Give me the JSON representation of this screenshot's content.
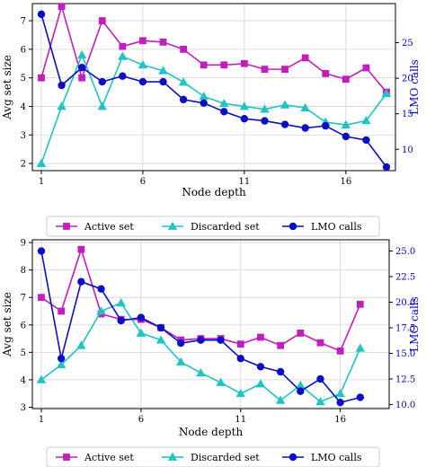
{
  "colors": {
    "active": "#c21ebd",
    "discarded": "#1fc4c4",
    "lmo": "#0b0fc4",
    "grid": "#d3d3d3",
    "right_axis": "#0000cc"
  },
  "legend": {
    "position": "below-plot",
    "active_label": "Active set",
    "discarded_label": "Discarded set",
    "lmo_label": "LMO calls"
  },
  "chart_data": [
    {
      "type": "line",
      "xlabel": "Node depth",
      "ylabel": "Avg set size",
      "y2label": "LMO calls",
      "xlim": [
        1,
        18
      ],
      "xticks": [
        1,
        6,
        11,
        16
      ],
      "ylim": [
        1.75,
        7.6
      ],
      "yticks": [
        2,
        3,
        4,
        5,
        6,
        7
      ],
      "y2lim": [
        7,
        30.5
      ],
      "y2ticks": [
        10,
        15,
        20,
        25
      ],
      "grid": true,
      "series": [
        {
          "name": "Active set",
          "axis": "left",
          "x": [
            1,
            2,
            3,
            4,
            5,
            6,
            7,
            8,
            9,
            10,
            11,
            12,
            13,
            14,
            15,
            16,
            17,
            18
          ],
          "values": [
            5.0,
            7.5,
            5.0,
            7.0,
            6.1,
            6.3,
            6.25,
            6.0,
            5.45,
            5.45,
            5.5,
            5.3,
            5.3,
            5.7,
            5.15,
            4.95,
            5.35,
            4.5
          ]
        },
        {
          "name": "Discarded set",
          "axis": "left",
          "x": [
            1,
            2,
            3,
            4,
            5,
            6,
            7,
            8,
            9,
            10,
            11,
            12,
            13,
            14,
            15,
            16,
            17,
            18
          ],
          "values": [
            2.0,
            4.0,
            5.8,
            4.0,
            5.75,
            5.45,
            5.25,
            4.85,
            4.35,
            4.1,
            4.0,
            3.9,
            4.05,
            3.95,
            3.45,
            3.35,
            3.5,
            4.45
          ]
        },
        {
          "name": "LMO calls",
          "axis": "right",
          "x": [
            1,
            2,
            3,
            4,
            5,
            6,
            7,
            8,
            9,
            10,
            11,
            12,
            13,
            14,
            15,
            16,
            17,
            18
          ],
          "values": [
            29.0,
            19.0,
            21.5,
            19.5,
            20.3,
            19.5,
            19.5,
            17.0,
            16.5,
            15.3,
            14.3,
            14.0,
            13.5,
            13.0,
            13.3,
            11.8,
            11.3,
            7.5
          ]
        }
      ]
    },
    {
      "type": "line",
      "xlabel": "Node depth",
      "ylabel": "Avg set size",
      "y2label": "LMO calls",
      "xlim": [
        1,
        18
      ],
      "xticks": [
        1,
        6,
        11,
        16
      ],
      "ylim": [
        2.95,
        9.1
      ],
      "yticks": [
        3,
        4,
        5,
        6,
        7,
        8,
        9
      ],
      "y2lim": [
        9.6,
        26.1
      ],
      "y2ticks": [
        "10.0",
        "12.5",
        "15.0",
        "17.5",
        "20.0",
        "22.5",
        "25.0"
      ],
      "grid": true,
      "series": [
        {
          "name": "Active set",
          "axis": "left",
          "x": [
            1,
            2,
            3,
            4,
            5,
            6,
            7,
            8,
            9,
            10,
            11,
            12,
            13,
            14,
            15,
            16,
            17
          ],
          "values": [
            7.0,
            6.5,
            8.75,
            6.4,
            6.2,
            6.2,
            5.9,
            5.45,
            5.5,
            5.5,
            5.3,
            5.55,
            5.25,
            5.7,
            5.35,
            5.05,
            6.75
          ]
        },
        {
          "name": "Discarded set",
          "axis": "left",
          "x": [
            1,
            2,
            3,
            4,
            5,
            6,
            7,
            8,
            9,
            10,
            11,
            12,
            13,
            14,
            15,
            16,
            17
          ],
          "values": [
            4.0,
            4.55,
            5.25,
            6.5,
            6.8,
            5.7,
            5.45,
            4.65,
            4.25,
            3.9,
            3.5,
            3.85,
            3.25,
            3.8,
            3.2,
            3.5,
            5.15
          ]
        },
        {
          "name": "LMO calls",
          "axis": "right",
          "x": [
            1,
            2,
            3,
            4,
            5,
            6,
            7,
            8,
            9,
            10,
            11,
            12,
            13,
            14,
            15,
            16,
            17
          ],
          "values": [
            25.0,
            14.5,
            22.0,
            21.3,
            18.2,
            18.5,
            17.5,
            16.0,
            16.3,
            16.3,
            14.5,
            13.7,
            13.2,
            11.3,
            12.5,
            10.2,
            10.7
          ]
        }
      ]
    }
  ]
}
